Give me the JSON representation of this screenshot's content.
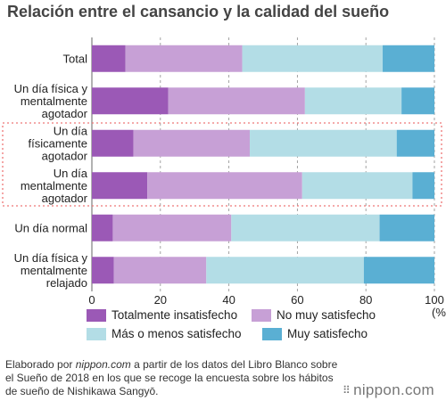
{
  "title": "Relación entre el cansancio y la calidad del sueño",
  "colors": {
    "totalmente_insatisfecho": "#9b59b6",
    "no_muy_satisfecho": "#c7a0d6",
    "mas_o_menos_satisfecho": "#b3dde6",
    "muy_satisfecho": "#5aafd3",
    "highlight_box": "#ee7777"
  },
  "legend": [
    {
      "label": "Totalmente insatisfecho",
      "color": "#9b59b6"
    },
    {
      "label": "No muy satisfecho",
      "color": "#c7a0d6"
    },
    {
      "label": "Más o menos satisfecho",
      "color": "#b3dde6"
    },
    {
      "label": "Muy satisfecho",
      "color": "#5aafd3"
    }
  ],
  "footer": {
    "prefix": "Elaborado por ",
    "source_site": "nippon.com",
    "suffix": " a partir de los datos del Libro Blanco sobre el Sueño de 2018 en los que se recoge la encuesta sobre los hábitos de sueño de Nishikawa Sangyō."
  },
  "logo": {
    "text": "nippon.com",
    "icon": "nippon-logo-icon"
  },
  "chart_data": {
    "type": "bar",
    "orientation": "horizontal",
    "stacked": true,
    "categories": [
      [
        "Total"
      ],
      [
        "Un día física y",
        "mentalmente",
        "agotador"
      ],
      [
        "Un día",
        "físicamente",
        "agotador"
      ],
      [
        "Un día",
        "mentalmente",
        "agotador"
      ],
      [
        "Un día normal"
      ],
      [
        "Un día física y",
        "mentalmente",
        "relajado"
      ]
    ],
    "series": [
      {
        "name": "Totalmente insatisfecho",
        "values": [
          9.8,
          22.3,
          12.1,
          16.2,
          6.1,
          6.4
        ]
      },
      {
        "name": "No muy satisfecho",
        "values": [
          34.1,
          39.9,
          34.0,
          45.2,
          34.6,
          27.0
        ]
      },
      {
        "name": "Más o menos satisfecho",
        "values": [
          41.0,
          28.2,
          42.9,
          32.2,
          43.3,
          46.0
        ]
      },
      {
        "name": "Muy satisfecho",
        "values": [
          15.1,
          9.6,
          11.0,
          6.4,
          16.0,
          20.6
        ]
      }
    ],
    "xlim": [
      0,
      100
    ],
    "xticks": [
      0,
      20,
      40,
      60,
      80,
      100
    ],
    "xunit": "(%)",
    "grid": true,
    "highlighted_categories": [
      2,
      3
    ],
    "legend_position": "bottom"
  }
}
